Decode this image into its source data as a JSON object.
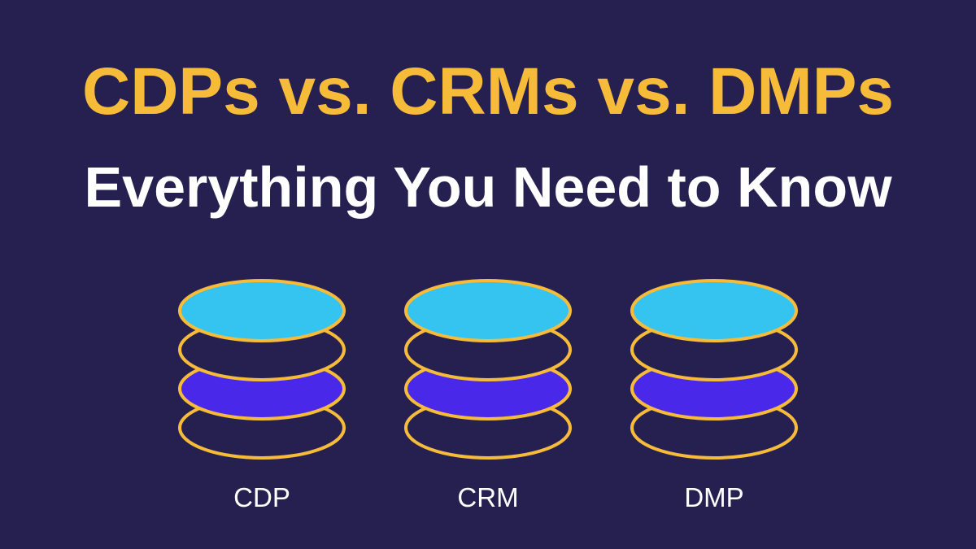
{
  "title": "CDPs vs. CRMs vs. DMPs",
  "subtitle": "Everything You Need to Know",
  "stacks": [
    {
      "label": "CDP"
    },
    {
      "label": "CRM"
    },
    {
      "label": "DMP"
    }
  ],
  "colors": {
    "background": "#262050",
    "accent": "#F7BB3A",
    "top_layer": "#35C3EF",
    "third_layer": "#4A28EA"
  }
}
